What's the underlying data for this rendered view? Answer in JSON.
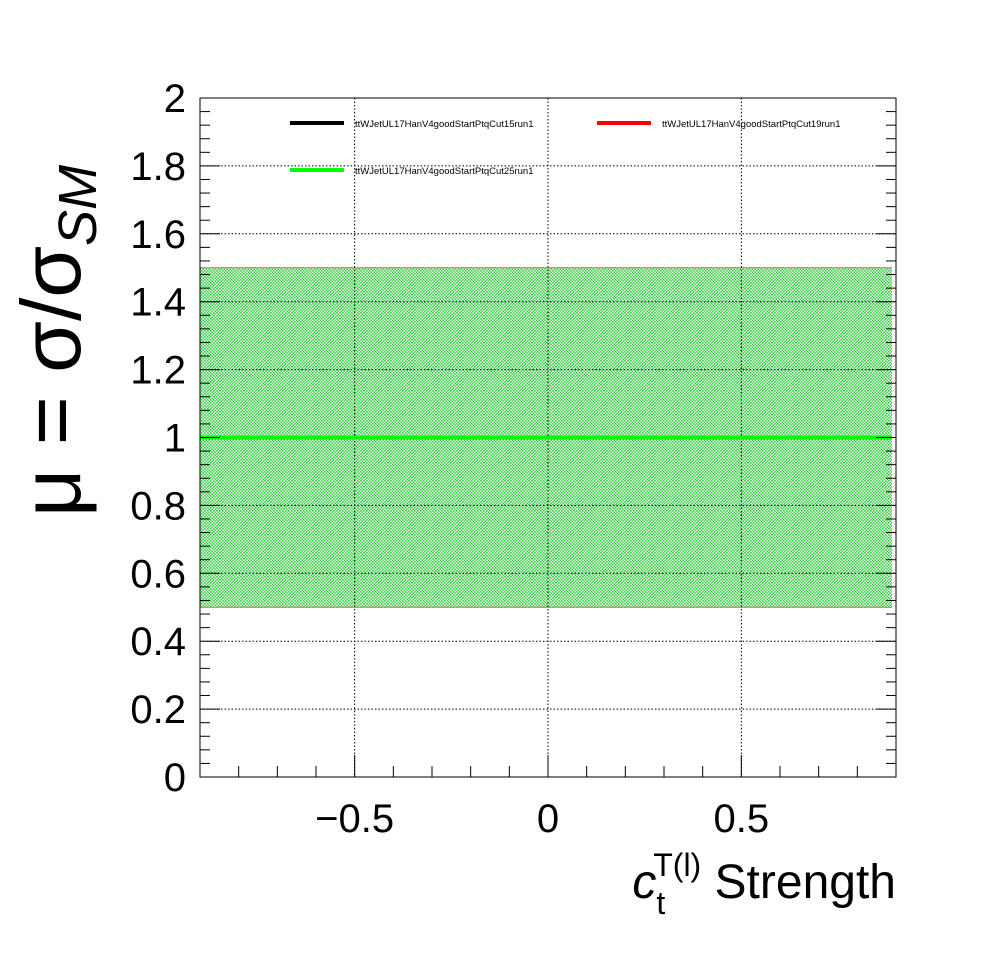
{
  "chart_data": {
    "type": "line",
    "xlabel": {
      "main": "c",
      "sub": "t",
      "sup": "T(l)",
      "suffix": " Strength"
    },
    "ylabel": {
      "prefix": "μ = σ/σ",
      "sub": "SM"
    },
    "xlim": [
      -0.9,
      0.9
    ],
    "ylim": [
      0,
      2
    ],
    "x_major_ticks": [
      -0.5,
      0,
      0.5
    ],
    "x_tick_labels": [
      "−0.5",
      "0",
      "0.5"
    ],
    "y_major_ticks": [
      0,
      0.2,
      0.4,
      0.6,
      0.8,
      1,
      1.2,
      1.4,
      1.6,
      1.8,
      2
    ],
    "y_tick_labels": [
      "0",
      "0.2",
      "0.4",
      "0.6",
      "0.8",
      "1",
      "1.2",
      "1.4",
      "1.6",
      "1.8",
      "2"
    ],
    "grid": true,
    "legend_position": "top",
    "band": {
      "x": [
        -0.9,
        0.9
      ],
      "ymin": 0.5,
      "ymax": 1.5,
      "color": "#00cc00"
    },
    "series": [
      {
        "name": "ttWJetUL17HanV4goodStartPtqCut15run1",
        "color": "#000000",
        "x": [
          -0.9,
          0.9
        ],
        "y": [
          1,
          1
        ]
      },
      {
        "name": "ttWJetUL17HanV4goodStartPtqCut19run1",
        "color": "#ff0000",
        "x": [
          -0.9,
          0.9
        ],
        "y": [
          1,
          1
        ]
      },
      {
        "name": "ttWJetUL17HanV4goodStartPtqCut25run1",
        "color": "#00ff00",
        "x": [
          -0.9,
          0.9
        ],
        "y": [
          1,
          1
        ]
      }
    ]
  }
}
